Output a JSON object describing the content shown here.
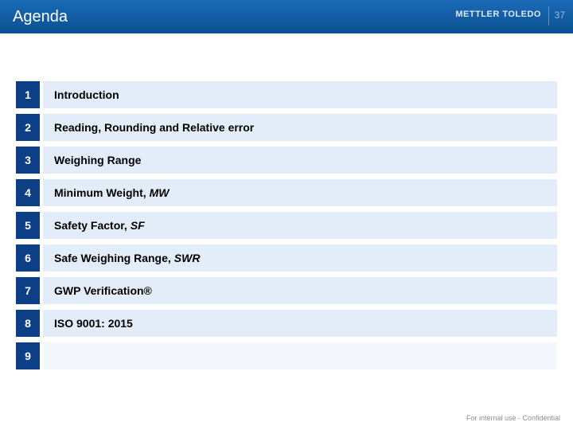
{
  "header": {
    "title": "Agenda",
    "brand": "METTLER TOLEDO",
    "page_number": "37",
    "bg_gradient_top": "#1a6bb8",
    "bg_gradient_bottom": "#0b4f8f"
  },
  "colors": {
    "num_box_bg": "#0d3f86",
    "row_bg_light": "#e3edf9",
    "row_bg_lighter": "#f4f8fd",
    "text_color": "#000000"
  },
  "agenda": {
    "items": [
      {
        "num": "1",
        "text": "Introduction",
        "italic": ""
      },
      {
        "num": "2",
        "text": "Reading, Rounding and Relative error",
        "italic": ""
      },
      {
        "num": "3",
        "text": "Weighing Range",
        "italic": ""
      },
      {
        "num": "4",
        "text": "Minimum Weight,",
        "italic": "MW"
      },
      {
        "num": "5",
        "text": "Safety Factor,",
        "italic": "SF"
      },
      {
        "num": "6",
        "text": "Safe Weighing Range,",
        "italic": "SWR"
      },
      {
        "num": "7",
        "text": "GWP Verification®",
        "italic": ""
      },
      {
        "num": "8",
        "text": "ISO 9001: 2015",
        "italic": ""
      },
      {
        "num": "9",
        "text": "",
        "italic": ""
      }
    ]
  },
  "footer": {
    "text": "For internal use - Confidential"
  }
}
